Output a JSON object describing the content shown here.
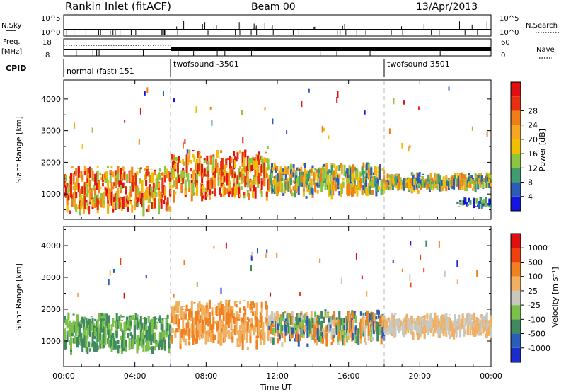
{
  "header": {
    "title": "Rankin Inlet (fitACF)",
    "beam": "Beam 00",
    "date": "13/Apr/2013"
  },
  "strips": {
    "nsky_label": "N.Sky",
    "nsky_ticks": [
      "10^5",
      "10^0"
    ],
    "nsearch_label": "N.Search",
    "nsearch_ticks": [
      "10^5",
      "10^0"
    ],
    "freq_label": "Freq.",
    "freq_unit": "[MHz]",
    "freq_ticks": [
      "18",
      "8"
    ],
    "nave_label": "Nave",
    "nave_ticks": [
      "60",
      "0"
    ],
    "cpid_label": "CPID",
    "cpid_segments": [
      {
        "label": "normal (fast) 151",
        "start_hour": 0.0
      },
      {
        "label": "twofsound -3501",
        "start_hour": 6.0
      },
      {
        "label": "twofsound 3501",
        "start_hour": 18.0
      }
    ]
  },
  "chart_data": [
    {
      "type": "heatmap",
      "name": "power-panel",
      "ylabel": "Slant Range [km]",
      "y_ticks": [
        "1000",
        "2000",
        "3000",
        "4000"
      ],
      "ylim": [
        200,
        4600
      ],
      "xlim": [
        0,
        24
      ],
      "colorbar": {
        "label": "Power [dB]",
        "ticks": [
          "4",
          "8",
          "12",
          "16",
          "20",
          "24",
          "28"
        ],
        "colors": [
          "#1515e0",
          "#2a5cb8",
          "#3f9c6e",
          "#8cc63f",
          "#f0c000",
          "#f5a623",
          "#f07e18",
          "#e83010",
          "#e01010"
        ]
      },
      "echo_bands": [
        {
          "x": [
            0.0,
            6.0
          ],
          "range_km": [
            300,
            1900
          ],
          "level": "strong"
        },
        {
          "x": [
            6.0,
            11.5
          ],
          "range_km": [
            700,
            2400
          ],
          "level": "strong"
        },
        {
          "x": [
            11.5,
            18.0
          ],
          "range_km": [
            800,
            2000
          ],
          "level": "moderate"
        },
        {
          "x": [
            18.0,
            24.0
          ],
          "range_km": [
            1000,
            1700
          ],
          "level": "moderate"
        },
        {
          "x": [
            22.0,
            24.0
          ],
          "range_km": [
            500,
            900
          ],
          "level": "weak"
        }
      ]
    },
    {
      "type": "heatmap",
      "name": "velocity-panel",
      "ylabel": "Slant Range [km]",
      "y_ticks": [
        "1000",
        "2000",
        "3000",
        "4000"
      ],
      "ylim": [
        200,
        4600
      ],
      "xlim": [
        0,
        24
      ],
      "colorbar": {
        "label": "Velocity [m s⁻¹]",
        "ticks": [
          "1000",
          "500",
          "100",
          "25",
          "-25",
          "-100",
          "-500",
          "-1000"
        ],
        "colors": [
          "#1a2ccc",
          "#2a5cb8",
          "#3f8a5e",
          "#7cc04a",
          "#c8c8c0",
          "#f0b060",
          "#f08020",
          "#f04010",
          "#e01010"
        ]
      },
      "echo_bands": [
        {
          "x": [
            0.0,
            6.0
          ],
          "range_km": [
            500,
            1900
          ],
          "level": "green"
        },
        {
          "x": [
            6.0,
            11.5
          ],
          "range_km": [
            700,
            2300
          ],
          "level": "orange"
        },
        {
          "x": [
            11.5,
            18.0
          ],
          "range_km": [
            800,
            2000
          ],
          "level": "mixed"
        },
        {
          "x": [
            18.0,
            24.0
          ],
          "range_km": [
            1000,
            1900
          ],
          "level": "grey"
        }
      ]
    }
  ],
  "time_axis": {
    "ticks": [
      "00:00",
      "04:00",
      "08:00",
      "12:00",
      "16:00",
      "20:00",
      "00:00"
    ],
    "label": "Time UT"
  }
}
